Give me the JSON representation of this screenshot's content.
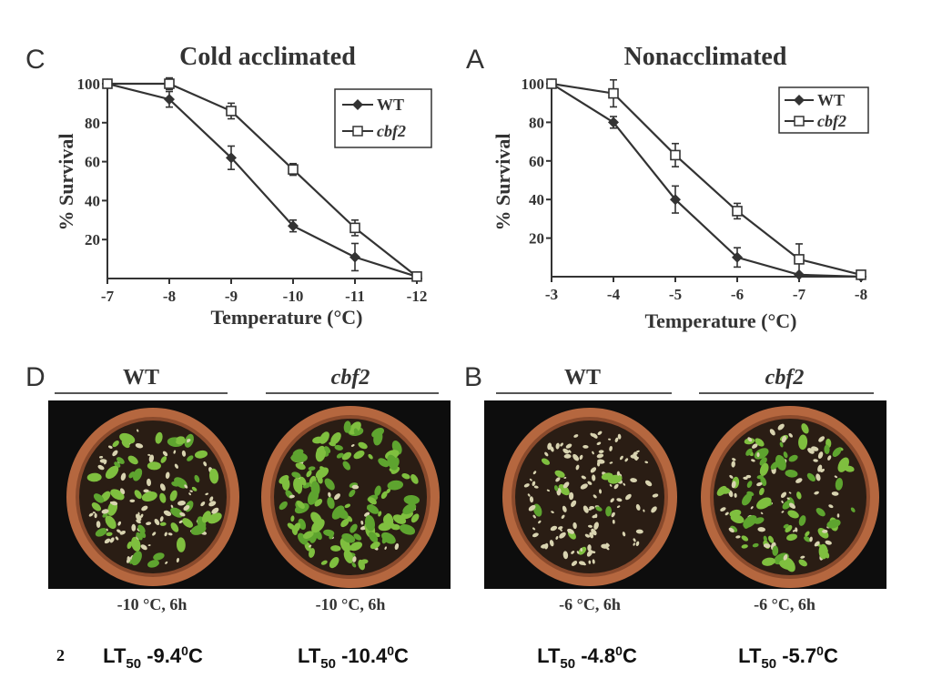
{
  "chart_data": [
    {
      "type": "line",
      "panel": "C",
      "title": "Cold acclimated",
      "xlabel": "Temperature (°C)",
      "ylabel": "% Survival",
      "x": [
        -7,
        -8,
        -9,
        -10,
        -11,
        -12
      ],
      "x_ticks": [
        "-7",
        "-8",
        "-9",
        "-10",
        "-11",
        "-12"
      ],
      "y_ticks": [
        "100",
        "80",
        "60",
        "40",
        "20"
      ],
      "ylim": [
        0,
        100
      ],
      "legend_position": "top-right",
      "series": [
        {
          "name": "WT",
          "marker": "filled-diamond",
          "values": [
            100,
            92,
            62,
            27,
            11,
            1
          ],
          "errors": [
            0,
            4,
            6,
            3,
            7,
            0
          ]
        },
        {
          "name": "cbf2",
          "marker": "open-square",
          "values": [
            100,
            100,
            86,
            56,
            26,
            1
          ],
          "errors": [
            0,
            3,
            4,
            3,
            4,
            0
          ]
        }
      ]
    },
    {
      "type": "line",
      "panel": "A",
      "title": "Nonacclimated",
      "xlabel": "Temperature (°C)",
      "ylabel": "% Survival",
      "x": [
        -3,
        -4,
        -5,
        -6,
        -7,
        -8
      ],
      "x_ticks": [
        "-3",
        "-4",
        "-5",
        "-6",
        "-7",
        "-8"
      ],
      "y_ticks": [
        "100",
        "80",
        "60",
        "40",
        "20"
      ],
      "ylim": [
        0,
        100
      ],
      "legend_position": "top-right",
      "series": [
        {
          "name": "WT",
          "marker": "filled-diamond",
          "values": [
            100,
            80,
            40,
            10,
            1,
            0
          ],
          "errors": [
            0,
            3,
            7,
            5,
            0,
            0
          ]
        },
        {
          "name": "cbf2",
          "marker": "open-square",
          "values": [
            100,
            95,
            63,
            34,
            9,
            1
          ],
          "errors": [
            0,
            7,
            6,
            4,
            8,
            0
          ]
        }
      ]
    }
  ],
  "photo_panels": [
    {
      "letter": "D",
      "headers": [
        "WT",
        "cbf2"
      ],
      "captions": [
        "-10 °C, 6h",
        "-10 °C, 6h"
      ]
    },
    {
      "letter": "B",
      "headers": [
        "WT",
        "cbf2"
      ],
      "captions": [
        "-6 °C, 6h",
        "-6 °C, 6h"
      ]
    }
  ],
  "footer": {
    "page_number": "2",
    "lt_prefix": "LT",
    "lt_sub": "50",
    "lt_unit": "C",
    "lt_degree": "0",
    "lt_values": [
      "-9.4",
      "-10.4",
      "-4.8",
      "-5.7"
    ]
  },
  "colors": {
    "ink": "#333333",
    "photo_bg": "#0d0d0d",
    "pot_rim": "#b5673f",
    "soil": "#2a1d14",
    "leaf": "#7fbf3f"
  }
}
